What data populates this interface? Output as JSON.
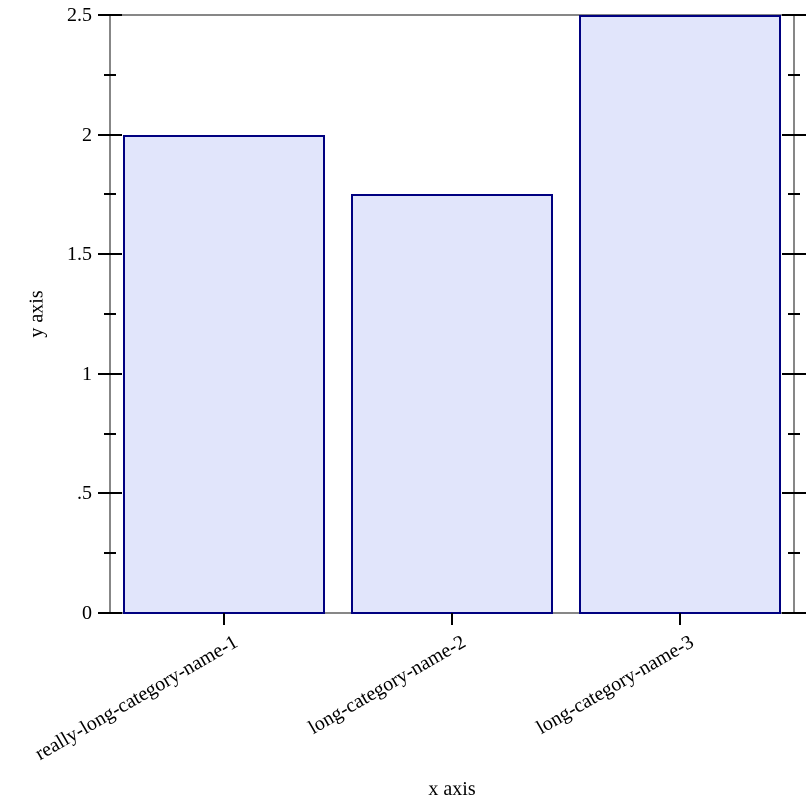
{
  "chart_data": {
    "type": "bar",
    "title": "",
    "xlabel": "x axis",
    "ylabel": "y axis",
    "categories": [
      "really-long-category-name-1",
      "long-category-name-2",
      "long-category-name-3"
    ],
    "values": [
      2,
      1.75,
      2.5
    ],
    "ylim": [
      0,
      2.5
    ],
    "y_major_ticks": [
      0,
      0.5,
      1,
      1.5,
      2,
      2.5
    ],
    "y_major_tick_labels": [
      "0",
      ".5",
      "1",
      "1.5",
      "2",
      "2.5"
    ],
    "y_minor_ticks": [
      0.25,
      0.75,
      1.25,
      1.75,
      2.25
    ],
    "grid": false,
    "legend_position": "none",
    "category_label_angle_deg": -30,
    "colors": {
      "bar_fill": "#e1e5fb",
      "bar_border": "#000080",
      "axis_line": "#878787",
      "tick_mark": "#000000",
      "text": "#000000",
      "background": "#ffffff"
    }
  }
}
